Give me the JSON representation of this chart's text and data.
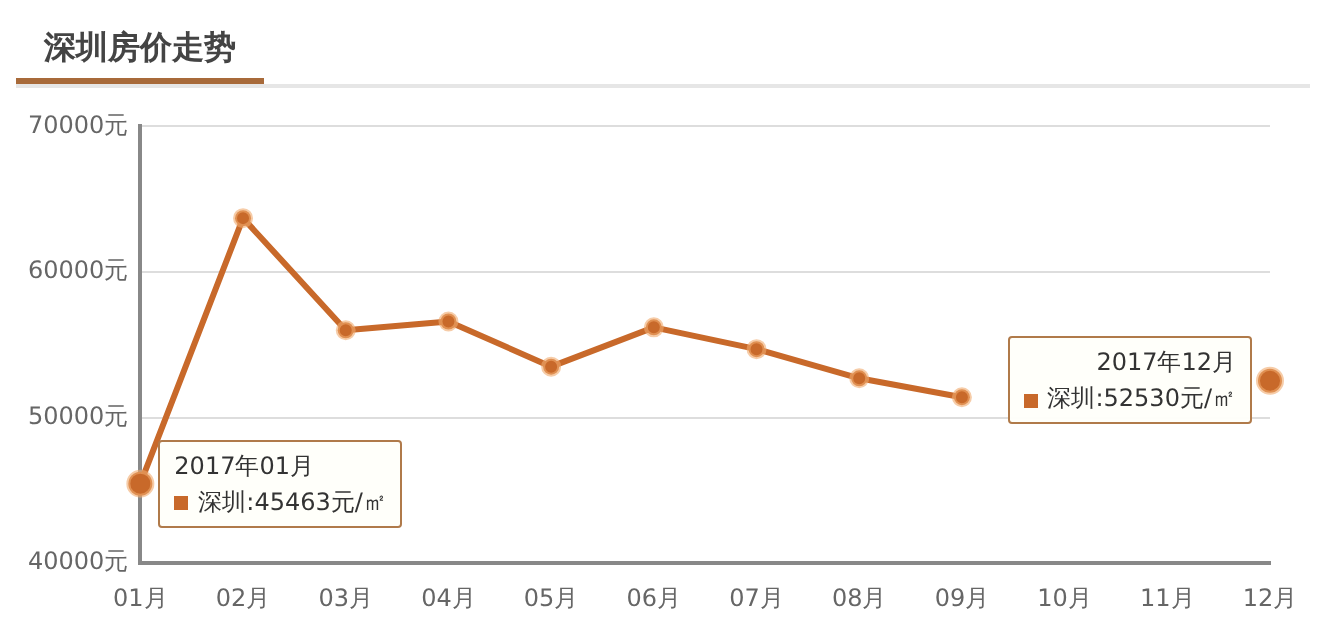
{
  "chart_data": {
    "type": "line",
    "title": "深圳房价走势",
    "categories": [
      "01月",
      "02月",
      "03月",
      "04月",
      "05月",
      "06月",
      "07月",
      "08月",
      "09月",
      "10月",
      "11月",
      "12月"
    ],
    "series": [
      {
        "color": "#c8692a",
        "values": [
          45463,
          63700,
          56000,
          56600,
          53500,
          56200,
          54700,
          52700,
          51400,
          null,
          null,
          52530
        ]
      }
    ],
    "ylim": [
      40000,
      70000
    ],
    "yticks": [
      {
        "value": 40000,
        "label": "40000元"
      },
      {
        "value": 50000,
        "label": "50000元"
      },
      {
        "value": 60000,
        "label": "60000元"
      },
      {
        "value": 70000,
        "label": "70000元"
      }
    ],
    "grid": "y",
    "marker": "circle",
    "line_style": "solid",
    "legend": false,
    "annotations": [
      {
        "text": "2017年01月",
        "x": "01月",
        "y": 45463
      },
      {
        "text": "深圳:45463元/㎡",
        "x": "01月",
        "y": 45463
      },
      {
        "text": "2017年12月",
        "x": "12月",
        "y": 52530
      },
      {
        "text": "深圳:52530元/㎡",
        "x": "12月",
        "y": 52530
      }
    ]
  }
}
